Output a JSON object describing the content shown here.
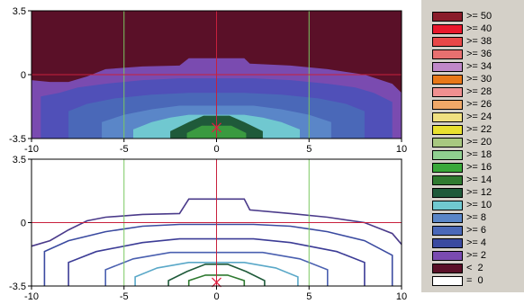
{
  "chart_data": [
    {
      "type": "heatmap",
      "panel": "filled contour map",
      "xlim": [
        -10,
        10
      ],
      "ylim": [
        -3.5,
        3.5
      ],
      "x_ticks": [
        "-10",
        "-5",
        "0",
        "5",
        "10"
      ],
      "y_ticks": [
        "3.5",
        "0",
        "-3.5"
      ],
      "y_tick_values": [
        3.5,
        0,
        -3.5
      ],
      "x_tick_values": [
        -10,
        -5,
        0,
        5,
        10
      ],
      "vertical_gridlines_x": [
        -5,
        5
      ],
      "crosshair": {
        "x": 0,
        "y": 0
      },
      "source_marker": {
        "x": 0,
        "y": -2.9,
        "symbol": "x"
      },
      "filled_bands": [
        {
          "level": 2,
          "color": "#7a4bb0",
          "boundary": [
            [
              -10,
              -3.5
            ],
            [
              -10,
              -0.3
            ],
            [
              -9,
              -0.4
            ],
            [
              -8,
              -0.4
            ],
            [
              -7,
              -0.1
            ],
            [
              -6,
              0.3
            ],
            [
              -4,
              0.45
            ],
            [
              -2,
              0.5
            ],
            [
              -1.5,
              0.9
            ],
            [
              1.5,
              0.9
            ],
            [
              1.8,
              0.6
            ],
            [
              4,
              0.5
            ],
            [
              6,
              0.3
            ],
            [
              8,
              0.0
            ],
            [
              9.5,
              -0.5
            ],
            [
              10,
              -1.0
            ],
            [
              10,
              -3.5
            ]
          ]
        },
        {
          "level": 4,
          "color": "#5050b8",
          "boundary": [
            [
              -9.5,
              -3.5
            ],
            [
              -9.5,
              -1.2
            ],
            [
              -8.5,
              -1.0
            ],
            [
              -7.5,
              -0.7
            ],
            [
              -6,
              -0.5
            ],
            [
              -4,
              -0.3
            ],
            [
              -2,
              -0.2
            ],
            [
              0,
              -0.2
            ],
            [
              2,
              -0.2
            ],
            [
              4,
              -0.3
            ],
            [
              6,
              -0.5
            ],
            [
              7.5,
              -0.7
            ],
            [
              8.5,
              -1.0
            ],
            [
              9.5,
              -1.5
            ],
            [
              9.5,
              -3.5
            ]
          ]
        },
        {
          "level": 6,
          "color": "#4a68b8",
          "boundary": [
            [
              -8,
              -3.5
            ],
            [
              -8,
              -2.0
            ],
            [
              -7,
              -1.6
            ],
            [
              -5.5,
              -1.3
            ],
            [
              -3.5,
              -1.1
            ],
            [
              -1.5,
              -1.0
            ],
            [
              1.5,
              -1.0
            ],
            [
              3.5,
              -1.1
            ],
            [
              5.5,
              -1.3
            ],
            [
              7,
              -1.6
            ],
            [
              8,
              -2.0
            ],
            [
              8,
              -3.5
            ]
          ]
        },
        {
          "level": 8,
          "color": "#5a86c8",
          "boundary": [
            [
              -6.2,
              -3.5
            ],
            [
              -6.2,
              -2.6
            ],
            [
              -5,
              -2.2
            ],
            [
              -3.5,
              -1.9
            ],
            [
              -2,
              -1.7
            ],
            [
              2,
              -1.7
            ],
            [
              3.5,
              -1.9
            ],
            [
              5,
              -2.2
            ],
            [
              6.2,
              -2.6
            ],
            [
              6.2,
              -3.5
            ]
          ]
        },
        {
          "level": 10,
          "color": "#70c8d0",
          "boundary": [
            [
              -4.5,
              -3.5
            ],
            [
              -4.5,
              -3.0
            ],
            [
              -3.5,
              -2.6
            ],
            [
              -2.5,
              -2.35
            ],
            [
              -1.5,
              -2.2
            ],
            [
              1.5,
              -2.2
            ],
            [
              2.5,
              -2.35
            ],
            [
              3.5,
              -2.6
            ],
            [
              4.5,
              -3.0
            ],
            [
              4.5,
              -3.5
            ]
          ]
        },
        {
          "level": 12,
          "color": "#1f5a3a",
          "boundary": [
            [
              -2.5,
              -3.5
            ],
            [
              -2.5,
              -3.1
            ],
            [
              -1.5,
              -2.6
            ],
            [
              -0.7,
              -2.25
            ],
            [
              0.7,
              -2.25
            ],
            [
              1.5,
              -2.6
            ],
            [
              2.5,
              -3.1
            ],
            [
              2.5,
              -3.5
            ]
          ]
        },
        {
          "level": 14,
          "color": "#3a9a40",
          "boundary": [
            [
              -1.6,
              -3.5
            ],
            [
              -1.6,
              -3.2
            ],
            [
              -0.8,
              -2.8
            ],
            [
              0.8,
              -2.8
            ],
            [
              1.6,
              -3.2
            ],
            [
              1.6,
              -3.5
            ]
          ]
        }
      ]
    },
    {
      "type": "line",
      "panel": "contour line map",
      "xlim": [
        -10,
        10
      ],
      "ylim": [
        -3.5,
        3.5
      ],
      "x_ticks": [
        "-10",
        "-5",
        "0",
        "5",
        "10"
      ],
      "y_ticks": [
        "3.5",
        "0",
        "-3.5"
      ],
      "y_tick_values": [
        3.5,
        0,
        -3.5
      ],
      "x_tick_values": [
        -10,
        -5,
        0,
        5,
        10
      ],
      "vertical_gridlines_x": [
        -5,
        5
      ],
      "crosshair": {
        "x": 0,
        "y": 0
      },
      "source_marker": {
        "x": 0,
        "y": -3.3,
        "symbol": "x"
      },
      "series": [
        {
          "level": 2,
          "color": "#4a3a8a",
          "points": [
            [
              -10,
              -1.3
            ],
            [
              -9,
              -1.0
            ],
            [
              -8,
              -0.4
            ],
            [
              -7,
              0.1
            ],
            [
              -6,
              0.3
            ],
            [
              -4,
              0.45
            ],
            [
              -2,
              0.5
            ],
            [
              -1.5,
              1.3
            ],
            [
              1.5,
              1.3
            ],
            [
              1.8,
              0.7
            ],
            [
              4,
              0.5
            ],
            [
              6,
              0.3
            ],
            [
              8,
              0.0
            ],
            [
              9.5,
              -0.6
            ],
            [
              10,
              -1.2
            ]
          ]
        },
        {
          "level": 4,
          "color": "#3a4aa0",
          "points": [
            [
              -9.3,
              -3.5
            ],
            [
              -9.3,
              -1.6
            ],
            [
              -8,
              -1.0
            ],
            [
              -6,
              -0.5
            ],
            [
              -4,
              -0.2
            ],
            [
              -2,
              -0.1
            ],
            [
              2,
              -0.1
            ],
            [
              4,
              -0.2
            ],
            [
              6,
              -0.5
            ],
            [
              8,
              -1.0
            ],
            [
              9.5,
              -1.8
            ],
            [
              9.5,
              -3.5
            ]
          ]
        },
        {
          "level": 6,
          "color": "#3c3c96",
          "points": [
            [
              -8,
              -3.5
            ],
            [
              -8,
              -2.2
            ],
            [
              -6.5,
              -1.6
            ],
            [
              -4,
              -1.1
            ],
            [
              -2,
              -0.9
            ],
            [
              2,
              -0.9
            ],
            [
              4,
              -1.1
            ],
            [
              6.5,
              -1.6
            ],
            [
              8,
              -2.2
            ],
            [
              8,
              -3.5
            ]
          ]
        },
        {
          "level": 8,
          "color": "#4a60b0",
          "points": [
            [
              -6,
              -3.5
            ],
            [
              -6,
              -2.6
            ],
            [
              -4.5,
              -2.0
            ],
            [
              -2.5,
              -1.65
            ],
            [
              2.5,
              -1.65
            ],
            [
              4.5,
              -2.0
            ],
            [
              6,
              -2.6
            ],
            [
              6,
              -3.5
            ]
          ]
        },
        {
          "level": 10,
          "color": "#5aa8c8",
          "points": [
            [
              -4.4,
              -3.5
            ],
            [
              -4.4,
              -3.0
            ],
            [
              -3.2,
              -2.5
            ],
            [
              -1.5,
              -2.2
            ],
            [
              1.5,
              -2.2
            ],
            [
              3.2,
              -2.5
            ],
            [
              4.4,
              -3.0
            ],
            [
              4.4,
              -3.5
            ]
          ]
        },
        {
          "level": 12,
          "color": "#1f5a3a",
          "points": [
            [
              -2.6,
              -3.5
            ],
            [
              -2.6,
              -3.2
            ],
            [
              -1.6,
              -2.7
            ],
            [
              -0.6,
              -2.3
            ],
            [
              0.6,
              -2.3
            ],
            [
              1.6,
              -2.7
            ],
            [
              2.6,
              -3.2
            ],
            [
              2.6,
              -3.5
            ]
          ]
        },
        {
          "level": 14,
          "color": "#2f7a30",
          "points": [
            [
              -1.5,
              -3.5
            ],
            [
              -1.5,
              -3.2
            ],
            [
              -0.6,
              -2.9
            ],
            [
              0.6,
              -2.9
            ],
            [
              1.5,
              -3.2
            ],
            [
              1.5,
              -3.5
            ]
          ]
        }
      ]
    }
  ],
  "legend": [
    {
      "label": ">= 50",
      "color": "#8a1c2a"
    },
    {
      "label": ">= 40",
      "color": "#e8182c"
    },
    {
      "label": ">= 38",
      "color": "#e84848"
    },
    {
      "label": ">= 36",
      "color": "#e87070"
    },
    {
      "label": ">= 34",
      "color": "#c088c8"
    },
    {
      "label": ">= 30",
      "color": "#e87818"
    },
    {
      "label": ">= 28",
      "color": "#f09090"
    },
    {
      "label": ">= 26",
      "color": "#f0a868"
    },
    {
      "label": ">= 24",
      "color": "#f0e080"
    },
    {
      "label": ">= 22",
      "color": "#e8e030"
    },
    {
      "label": ">= 20",
      "color": "#a8c880"
    },
    {
      "label": ">= 18",
      "color": "#90d090"
    },
    {
      "label": ">= 16",
      "color": "#3aa83a"
    },
    {
      "label": ">= 14",
      "color": "#2f7a30"
    },
    {
      "label": ">= 12",
      "color": "#1f5a3a"
    },
    {
      "label": ">= 10",
      "color": "#70c8d0"
    },
    {
      "label": ">= 8",
      "color": "#5a86c8"
    },
    {
      "label": ">= 6",
      "color": "#4a68b8"
    },
    {
      "label": ">= 4",
      "color": "#3a4aa0"
    },
    {
      "label": ">= 2",
      "color": "#7a4bb0"
    },
    {
      "label": "<  2",
      "color": "#5a1028"
    },
    {
      "label": "=  0",
      "color": "#ffffff"
    }
  ],
  "colors": {
    "gridline_vertical": "#7ac860",
    "crosshair": "#c8203c",
    "marker": "#e02040",
    "below_threshold": "#5a1028"
  }
}
